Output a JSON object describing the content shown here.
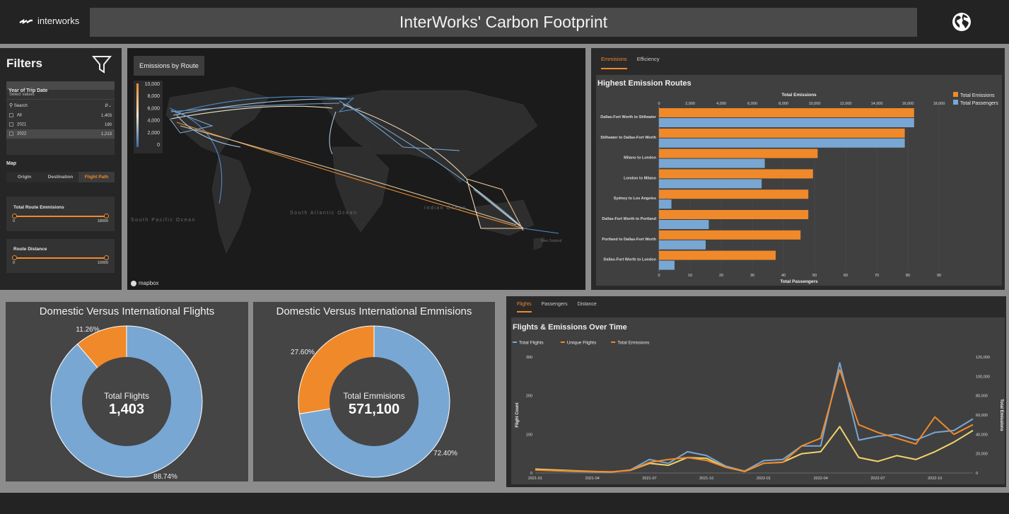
{
  "header": {
    "logo_text": "interworks",
    "title": "InterWorks' Carbon Footprint",
    "globe_icon": "globe-icon"
  },
  "filters": {
    "title": "Filters",
    "year": {
      "label": "Year of Trip Date",
      "placeholder": "Select values",
      "search_placeholder": "Search",
      "options": [
        {
          "label": "All",
          "count": "1,403"
        },
        {
          "label": "2021",
          "count": "190"
        },
        {
          "label": "2022",
          "count": "1,213"
        }
      ]
    },
    "map": {
      "label": "Map",
      "modes": [
        "Origin",
        "Destination",
        "Flight Path"
      ],
      "selected": "Flight Path"
    },
    "route_emissions": {
      "label": "Total Route Emmisions",
      "min": "0",
      "max": "18000"
    },
    "route_distance": {
      "label": "Route Distance",
      "min": "0",
      "max": "10000"
    }
  },
  "map": {
    "title": "Emissions by Route",
    "legend_ticks": [
      "10,000",
      "8,000",
      "6,000",
      "4,000",
      "2,000",
      "0"
    ],
    "labels": [
      "South Pacific Ocean",
      "South Atlantic Ocean",
      "Indian Ocean",
      "New Zealand"
    ],
    "attribution": "mapbox"
  },
  "bar_panel": {
    "tabs": [
      "Emmisions",
      "Efficiency"
    ],
    "active_tab": "Emmisions"
  },
  "line_panel": {
    "tabs": [
      "Flights",
      "Passengers",
      "Distance"
    ],
    "active_tab": "Flights"
  },
  "colors": {
    "orange": "#f0892a",
    "blue": "#79a7d3",
    "yellow": "#f2d36b"
  },
  "chart_data": [
    {
      "type": "bar",
      "title": "Highest Emission Routes",
      "categories": [
        "Dallas-Fort Worth to Stillwater",
        "Stillwater to Dallas-Fort Worth",
        "Milano to London",
        "London to Milano",
        "Sydney to Los Angeles",
        "Dallas-Fort Worth to Portland",
        "Portland to Dallas-Fort Worth",
        "Dallas-Fort Worth to London"
      ],
      "series": [
        {
          "name": "Total Emissions",
          "axis": "top",
          "values": [
            16400,
            15800,
            10200,
            9900,
            9600,
            9600,
            9100,
            7500
          ]
        },
        {
          "name": "Total Passengers",
          "axis": "bottom",
          "values": [
            82,
            79,
            34,
            33,
            4,
            16,
            15,
            5
          ]
        }
      ],
      "top_axis": {
        "label": "Total Emissions",
        "range": [
          0,
          18000
        ],
        "ticks": [
          "0",
          "2,000",
          "4,000",
          "6,000",
          "8,000",
          "10,000",
          "12,000",
          "14,000",
          "16,000",
          "18,000"
        ]
      },
      "bottom_axis": {
        "label": "Total Passengers",
        "range": [
          0,
          90
        ],
        "ticks": [
          "0",
          "10",
          "20",
          "30",
          "40",
          "50",
          "60",
          "70",
          "80",
          "90"
        ]
      },
      "legend": "top-right"
    },
    {
      "type": "pie",
      "title": "Domestic Versus International Flights",
      "center_label": "Total Flights",
      "center_value": "1,403",
      "slices": [
        {
          "value": 88.74,
          "label": "88.74%"
        },
        {
          "value": 11.26,
          "label": "11.26%"
        }
      ]
    },
    {
      "type": "pie",
      "title": "Domestic Versus International Emmisions",
      "center_label": "Total Emmisions",
      "center_value": "571,100",
      "slices": [
        {
          "value": 72.4,
          "label": "72.40%"
        },
        {
          "value": 27.6,
          "label": "27.60%"
        }
      ]
    },
    {
      "type": "line",
      "title": "Flights & Emissions Over Time",
      "x": [
        "2021-01",
        "2021-02",
        "2021-03",
        "2021-04",
        "2021-05",
        "2021-06",
        "2021-07",
        "2021-08",
        "2021-09",
        "2021-10",
        "2021-11",
        "2021-12",
        "2022-01",
        "2022-02",
        "2022-03",
        "2022-04",
        "2022-05",
        "2022-06",
        "2022-07",
        "2022-08",
        "2022-09",
        "2022-10",
        "2022-11",
        "2022-12"
      ],
      "x_ticks": [
        "2021-01",
        "2021-04",
        "2021-07",
        "2021-10",
        "2022-01",
        "2022-04",
        "2022-07",
        "2022-10"
      ],
      "series": [
        {
          "name": "Total Flights",
          "axis": "left",
          "values": [
            8,
            6,
            4,
            3,
            2,
            8,
            35,
            25,
            55,
            45,
            18,
            5,
            32,
            35,
            70,
            70,
            285,
            85,
            95,
            100,
            85,
            105,
            110,
            140
          ]
        },
        {
          "name": "Unique Flights",
          "axis": "left",
          "values": [
            10,
            8,
            6,
            4,
            3,
            7,
            25,
            20,
            40,
            38,
            15,
            4,
            25,
            28,
            50,
            55,
            120,
            40,
            30,
            45,
            35,
            55,
            80,
            110
          ]
        },
        {
          "name": "Total Emissions",
          "axis": "right",
          "values": [
            3000,
            2500,
            2000,
            1500,
            1000,
            3000,
            11000,
            14000,
            16000,
            13000,
            6000,
            2000,
            10000,
            11000,
            28000,
            36000,
            107000,
            50000,
            42000,
            36000,
            30000,
            58000,
            40000,
            50000
          ]
        }
      ],
      "y_left": {
        "label": "Flight Count",
        "range": [
          0,
          300
        ],
        "ticks": [
          "0",
          "100",
          "200",
          "300"
        ]
      },
      "y_right": {
        "label": "Total Emissions",
        "range": [
          0,
          120000
        ],
        "ticks": [
          "0",
          "20,000",
          "40,000",
          "60,000",
          "80,000",
          "100,000",
          "120,000"
        ]
      },
      "legend": "top-left"
    }
  ]
}
